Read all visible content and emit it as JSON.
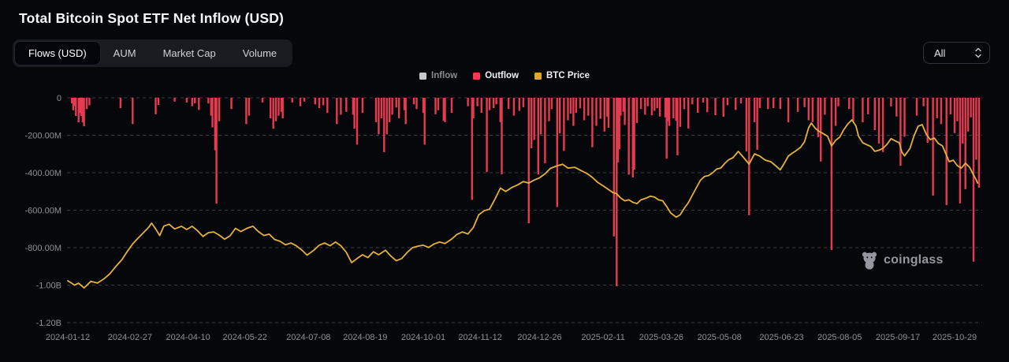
{
  "header": {
    "title": "Total Bitcoin Spot ETF Net Inflow (USD)"
  },
  "tabs": {
    "items": [
      {
        "label": "Flows (USD)",
        "active": true
      },
      {
        "label": "AUM",
        "active": false
      },
      {
        "label": "Market Cap",
        "active": false
      },
      {
        "label": "Volume",
        "active": false
      }
    ]
  },
  "range_select": {
    "value": "All"
  },
  "watermark": {
    "label": "coinglass"
  },
  "colors": {
    "background": "#06070b",
    "bar_outflow": "#e63a50",
    "btc_line": "#e5b139",
    "grid": "#3b3e46",
    "axis_text": "#8f9197",
    "inflow_swatch": "#c7c8cc",
    "outflow_swatch": "#ee3c52",
    "btc_swatch": "#e0a52c"
  },
  "chart_data": {
    "type": "bar",
    "title": "Total Bitcoin Spot ETF Net Inflow (USD)",
    "legend": [
      {
        "name": "Inflow",
        "color": "#c7c8cc",
        "dim": true
      },
      {
        "name": "Outflow",
        "color": "#ee3c52",
        "dim": false
      },
      {
        "name": "BTC Price",
        "color": "#e0a52c",
        "dim": false
      }
    ],
    "y_axis": {
      "units": "USD",
      "ticks": [
        {
          "label": "0",
          "value": 0
        },
        {
          "label": "-200.00M",
          "value": -200
        },
        {
          "label": "-400.00M",
          "value": -400
        },
        {
          "label": "-600.00M",
          "value": -600
        },
        {
          "label": "-800.00M",
          "value": -800
        },
        {
          "label": "-1.00B",
          "value": -1000
        },
        {
          "label": "-1.20B",
          "value": -1200
        }
      ]
    },
    "x_axis": {
      "start_date": "2024-01-12",
      "day_span": 676,
      "labels": [
        {
          "text": "2024-01-12",
          "day": 0
        },
        {
          "text": "2024-02-27",
          "day": 46
        },
        {
          "text": "2024-04-10",
          "day": 89
        },
        {
          "text": "2024-05-22",
          "day": 131
        },
        {
          "text": "2024-07-08",
          "day": 178
        },
        {
          "text": "2024-08-19",
          "day": 220
        },
        {
          "text": "2024-10-01",
          "day": 263
        },
        {
          "text": "2024-11-12",
          "day": 305
        },
        {
          "text": "2024-12-26",
          "day": 349
        },
        {
          "text": "2025-02-11",
          "day": 396
        },
        {
          "text": "2025-03-26",
          "day": 439
        },
        {
          "text": "2025-05-08",
          "day": 482
        },
        {
          "text": "2025-06-23",
          "day": 528
        },
        {
          "text": "2025-08-05",
          "day": 571
        },
        {
          "text": "2025-09-17",
          "day": 614
        },
        {
          "text": "2025-10-29",
          "day": 656
        }
      ]
    },
    "outflow_bars_musd": [
      [
        3,
        -30
      ],
      [
        4,
        -67
      ],
      [
        5,
        -45
      ],
      [
        6,
        -97
      ],
      [
        8,
        -131
      ],
      [
        9,
        -80
      ],
      [
        10,
        -97
      ],
      [
        11,
        -131
      ],
      [
        12,
        -152
      ],
      [
        14,
        -60
      ],
      [
        16,
        -40
      ],
      [
        39,
        -55
      ],
      [
        48,
        -140
      ],
      [
        65,
        -88
      ],
      [
        67,
        -38
      ],
      [
        79,
        -20
      ],
      [
        88,
        -25
      ],
      [
        92,
        -45
      ],
      [
        94,
        -30
      ],
      [
        97,
        -65
      ],
      [
        104,
        -30
      ],
      [
        106,
        -95
      ],
      [
        107,
        -158
      ],
      [
        109,
        -280
      ],
      [
        110,
        -565
      ],
      [
        112,
        -125
      ],
      [
        121,
        -60
      ],
      [
        132,
        -140
      ],
      [
        134,
        -95
      ],
      [
        144,
        -25
      ],
      [
        150,
        -110
      ],
      [
        152,
        -165
      ],
      [
        154,
        -125
      ],
      [
        156,
        -95
      ],
      [
        158,
        -75
      ],
      [
        159,
        -110
      ],
      [
        166,
        -25
      ],
      [
        172,
        -45
      ],
      [
        175,
        -20
      ],
      [
        183,
        -35
      ],
      [
        186,
        -55
      ],
      [
        189,
        -40
      ],
      [
        192,
        -81
      ],
      [
        199,
        -140
      ],
      [
        202,
        -90
      ],
      [
        206,
        -75
      ],
      [
        211,
        -90
      ],
      [
        212,
        -165
      ],
      [
        214,
        -250
      ],
      [
        218,
        -81
      ],
      [
        228,
        -130
      ],
      [
        230,
        -195
      ],
      [
        232,
        -110
      ],
      [
        234,
        -290
      ],
      [
        236,
        -195
      ],
      [
        238,
        -130
      ],
      [
        240,
        -90
      ],
      [
        243,
        -52
      ],
      [
        245,
        -110
      ],
      [
        249,
        -66
      ],
      [
        250,
        -140
      ],
      [
        256,
        -35
      ],
      [
        258,
        -60
      ],
      [
        263,
        -81
      ],
      [
        264,
        -250
      ],
      [
        272,
        -88
      ],
      [
        274,
        -66
      ],
      [
        278,
        -123
      ],
      [
        279,
        -130
      ],
      [
        284,
        -81
      ],
      [
        296,
        -45
      ],
      [
        299,
        -545
      ],
      [
        300,
        -110
      ],
      [
        303,
        -45
      ],
      [
        306,
        -80
      ],
      [
        310,
        -396
      ],
      [
        312,
        -66
      ],
      [
        315,
        -55
      ],
      [
        317,
        -35
      ],
      [
        320,
        -130
      ],
      [
        321,
        -409
      ],
      [
        326,
        -60
      ],
      [
        330,
        -95
      ],
      [
        334,
        -70
      ],
      [
        337,
        -50
      ],
      [
        341,
        -670
      ],
      [
        343,
        -270
      ],
      [
        345,
        -225
      ],
      [
        348,
        -410
      ],
      [
        350,
        -195
      ],
      [
        353,
        -349
      ],
      [
        356,
        -125
      ],
      [
        358,
        -60
      ],
      [
        362,
        -583
      ],
      [
        364,
        -190
      ],
      [
        367,
        -284
      ],
      [
        370,
        -120
      ],
      [
        372,
        -85
      ],
      [
        374,
        -150
      ],
      [
        376,
        -80
      ],
      [
        379,
        -56
      ],
      [
        382,
        -120
      ],
      [
        385,
        -95
      ],
      [
        388,
        -264
      ],
      [
        391,
        -150
      ],
      [
        394,
        -112
      ],
      [
        397,
        -180
      ],
      [
        399,
        -102
      ],
      [
        400,
        -160
      ],
      [
        404,
        -740
      ],
      [
        406,
        -1006
      ],
      [
        407,
        -345
      ],
      [
        408,
        -275
      ],
      [
        409,
        -95
      ],
      [
        411,
        -75
      ],
      [
        412,
        -145
      ],
      [
        415,
        -410
      ],
      [
        418,
        -425
      ],
      [
        419,
        -383
      ],
      [
        421,
        -135
      ],
      [
        424,
        -60
      ],
      [
        427,
        -90
      ],
      [
        429,
        -45
      ],
      [
        432,
        -93
      ],
      [
        434,
        -70
      ],
      [
        436,
        -55
      ],
      [
        438,
        -100
      ],
      [
        442,
        -105
      ],
      [
        443,
        -325
      ],
      [
        444,
        -125
      ],
      [
        445,
        -150
      ],
      [
        448,
        -110
      ],
      [
        450,
        -123
      ],
      [
        451,
        -307
      ],
      [
        453,
        -155
      ],
      [
        456,
        -60
      ],
      [
        459,
        -164
      ],
      [
        462,
        -35
      ],
      [
        466,
        -80
      ],
      [
        470,
        -25
      ],
      [
        473,
        -77
      ],
      [
        479,
        -93
      ],
      [
        485,
        -101
      ],
      [
        488,
        -40
      ],
      [
        494,
        -65
      ],
      [
        498,
        -30
      ],
      [
        502,
        -286
      ],
      [
        504,
        -627
      ],
      [
        508,
        -130
      ],
      [
        510,
        -278
      ],
      [
        512,
        -55
      ],
      [
        518,
        -60
      ],
      [
        522,
        -55
      ],
      [
        527,
        -60
      ],
      [
        533,
        -131
      ],
      [
        540,
        -75
      ],
      [
        545,
        -50
      ],
      [
        548,
        -120
      ],
      [
        551,
        -130
      ],
      [
        555,
        -210
      ],
      [
        557,
        -340
      ],
      [
        560,
        -90
      ],
      [
        565,
        -812
      ],
      [
        568,
        -150
      ],
      [
        570,
        -45
      ],
      [
        578,
        -60
      ],
      [
        581,
        -125
      ],
      [
        588,
        -131
      ],
      [
        592,
        -88
      ],
      [
        597,
        -173
      ],
      [
        600,
        -245
      ],
      [
        603,
        -290
      ],
      [
        609,
        -46
      ],
      [
        613,
        -100
      ],
      [
        616,
        -363
      ],
      [
        619,
        -208
      ],
      [
        628,
        -95
      ],
      [
        633,
        -45
      ],
      [
        636,
        -240
      ],
      [
        640,
        -522
      ],
      [
        643,
        -109
      ],
      [
        646,
        -140
      ],
      [
        650,
        -573
      ],
      [
        653,
        -88
      ],
      [
        656,
        -188
      ],
      [
        658,
        -125
      ],
      [
        660,
        -564
      ],
      [
        662,
        -245
      ],
      [
        664,
        -488
      ],
      [
        666,
        -180
      ],
      [
        668,
        -105
      ],
      [
        670,
        -875
      ],
      [
        672,
        -330
      ],
      [
        674,
        -480
      ]
    ],
    "btc_price_line_musd_equiv": [
      [
        0,
        -977
      ],
      [
        5,
        -1000
      ],
      [
        8,
        -990
      ],
      [
        12,
        -1015
      ],
      [
        17,
        -980
      ],
      [
        22,
        -989
      ],
      [
        27,
        -965
      ],
      [
        31,
        -940
      ],
      [
        35,
        -905
      ],
      [
        40,
        -865
      ],
      [
        44,
        -820
      ],
      [
        48,
        -780
      ],
      [
        52,
        -749
      ],
      [
        56,
        -720
      ],
      [
        60,
        -690
      ],
      [
        62,
        -669
      ],
      [
        65,
        -700
      ],
      [
        68,
        -735
      ],
      [
        71,
        -685
      ],
      [
        75,
        -675
      ],
      [
        79,
        -700
      ],
      [
        84,
        -686
      ],
      [
        88,
        -703
      ],
      [
        92,
        -686
      ],
      [
        96,
        -710
      ],
      [
        100,
        -740
      ],
      [
        104,
        -720
      ],
      [
        108,
        -716
      ],
      [
        112,
        -733
      ],
      [
        116,
        -755
      ],
      [
        120,
        -737
      ],
      [
        124,
        -697
      ],
      [
        128,
        -714
      ],
      [
        133,
        -695
      ],
      [
        137,
        -686
      ],
      [
        141,
        -714
      ],
      [
        145,
        -735
      ],
      [
        149,
        -728
      ],
      [
        153,
        -756
      ],
      [
        157,
        -766
      ],
      [
        161,
        -785
      ],
      [
        165,
        -775
      ],
      [
        169,
        -790
      ],
      [
        173,
        -812
      ],
      [
        177,
        -840
      ],
      [
        182,
        -814
      ],
      [
        186,
        -787
      ],
      [
        190,
        -775
      ],
      [
        194,
        -790
      ],
      [
        198,
        -770
      ],
      [
        202,
        -790
      ],
      [
        206,
        -825
      ],
      [
        210,
        -880
      ],
      [
        214,
        -858
      ],
      [
        218,
        -838
      ],
      [
        222,
        -853
      ],
      [
        226,
        -822
      ],
      [
        230,
        -838
      ],
      [
        235,
        -814
      ],
      [
        239,
        -845
      ],
      [
        243,
        -870
      ],
      [
        247,
        -858
      ],
      [
        251,
        -826
      ],
      [
        255,
        -800
      ],
      [
        259,
        -792
      ],
      [
        263,
        -787
      ],
      [
        267,
        -799
      ],
      [
        271,
        -780
      ],
      [
        275,
        -770
      ],
      [
        279,
        -778
      ],
      [
        284,
        -754
      ],
      [
        288,
        -729
      ],
      [
        292,
        -716
      ],
      [
        296,
        -727
      ],
      [
        300,
        -692
      ],
      [
        304,
        -625
      ],
      [
        308,
        -603
      ],
      [
        312,
        -594
      ],
      [
        316,
        -541
      ],
      [
        320,
        -482
      ],
      [
        324,
        -500
      ],
      [
        328,
        -481
      ],
      [
        333,
        -464
      ],
      [
        337,
        -447
      ],
      [
        341,
        -455
      ],
      [
        345,
        -439
      ],
      [
        349,
        -427
      ],
      [
        353,
        -406
      ],
      [
        357,
        -377
      ],
      [
        362,
        -363
      ],
      [
        366,
        -355
      ],
      [
        370,
        -375
      ],
      [
        375,
        -371
      ],
      [
        380,
        -390
      ],
      [
        384,
        -404
      ],
      [
        388,
        -425
      ],
      [
        392,
        -452
      ],
      [
        396,
        -470
      ],
      [
        400,
        -490
      ],
      [
        403,
        -505
      ],
      [
        406,
        -512
      ],
      [
        409,
        -535
      ],
      [
        412,
        -550
      ],
      [
        415,
        -545
      ],
      [
        418,
        -558
      ],
      [
        421,
        -565
      ],
      [
        424,
        -545
      ],
      [
        428,
        -535
      ],
      [
        431,
        -525
      ],
      [
        434,
        -530
      ],
      [
        437,
        -545
      ],
      [
        440,
        -550
      ],
      [
        443,
        -580
      ],
      [
        446,
        -615
      ],
      [
        450,
        -637
      ],
      [
        453,
        -625
      ],
      [
        456,
        -590
      ],
      [
        459,
        -560
      ],
      [
        462,
        -520
      ],
      [
        465,
        -480
      ],
      [
        468,
        -440
      ],
      [
        471,
        -420
      ],
      [
        474,
        -415
      ],
      [
        477,
        -400
      ],
      [
        480,
        -380
      ],
      [
        483,
        -375
      ],
      [
        486,
        -350
      ],
      [
        489,
        -330
      ],
      [
        492,
        -320
      ],
      [
        496,
        -286
      ],
      [
        500,
        -320
      ],
      [
        504,
        -354
      ],
      [
        508,
        -299
      ],
      [
        512,
        -312
      ],
      [
        516,
        -333
      ],
      [
        520,
        -341
      ],
      [
        524,
        -365
      ],
      [
        527,
        -385
      ],
      [
        530,
        -350
      ],
      [
        533,
        -311
      ],
      [
        536,
        -295
      ],
      [
        539,
        -281
      ],
      [
        542,
        -265
      ],
      [
        545,
        -235
      ],
      [
        548,
        -160
      ],
      [
        550,
        -135
      ],
      [
        553,
        -164
      ],
      [
        556,
        -180
      ],
      [
        559,
        -192
      ],
      [
        562,
        -205
      ],
      [
        565,
        -257
      ],
      [
        568,
        -227
      ],
      [
        571,
        -210
      ],
      [
        574,
        -170
      ],
      [
        577,
        -140
      ],
      [
        580,
        -118
      ],
      [
        583,
        -150
      ],
      [
        585,
        -206
      ],
      [
        588,
        -240
      ],
      [
        591,
        -250
      ],
      [
        594,
        -260
      ],
      [
        597,
        -286
      ],
      [
        600,
        -280
      ],
      [
        603,
        -270
      ],
      [
        606,
        -248
      ],
      [
        609,
        -218
      ],
      [
        612,
        -230
      ],
      [
        615,
        -240
      ],
      [
        617,
        -290
      ],
      [
        619,
        -310
      ],
      [
        621,
        -290
      ],
      [
        623,
        -270
      ],
      [
        626,
        -202
      ],
      [
        629,
        -152
      ],
      [
        632,
        -143
      ],
      [
        635,
        -194
      ],
      [
        638,
        -223
      ],
      [
        641,
        -215
      ],
      [
        644,
        -244
      ],
      [
        647,
        -257
      ],
      [
        650,
        -307
      ],
      [
        652,
        -341
      ],
      [
        655,
        -333
      ],
      [
        658,
        -362
      ],
      [
        661,
        -375
      ],
      [
        664,
        -349
      ],
      [
        667,
        -370
      ],
      [
        670,
        -412
      ],
      [
        672,
        -438
      ],
      [
        673,
        -455
      ]
    ],
    "note": "BTC Price is plotted against a hidden right price axis; line values are stored as their left-axis USD-million equivalents as rendered."
  }
}
